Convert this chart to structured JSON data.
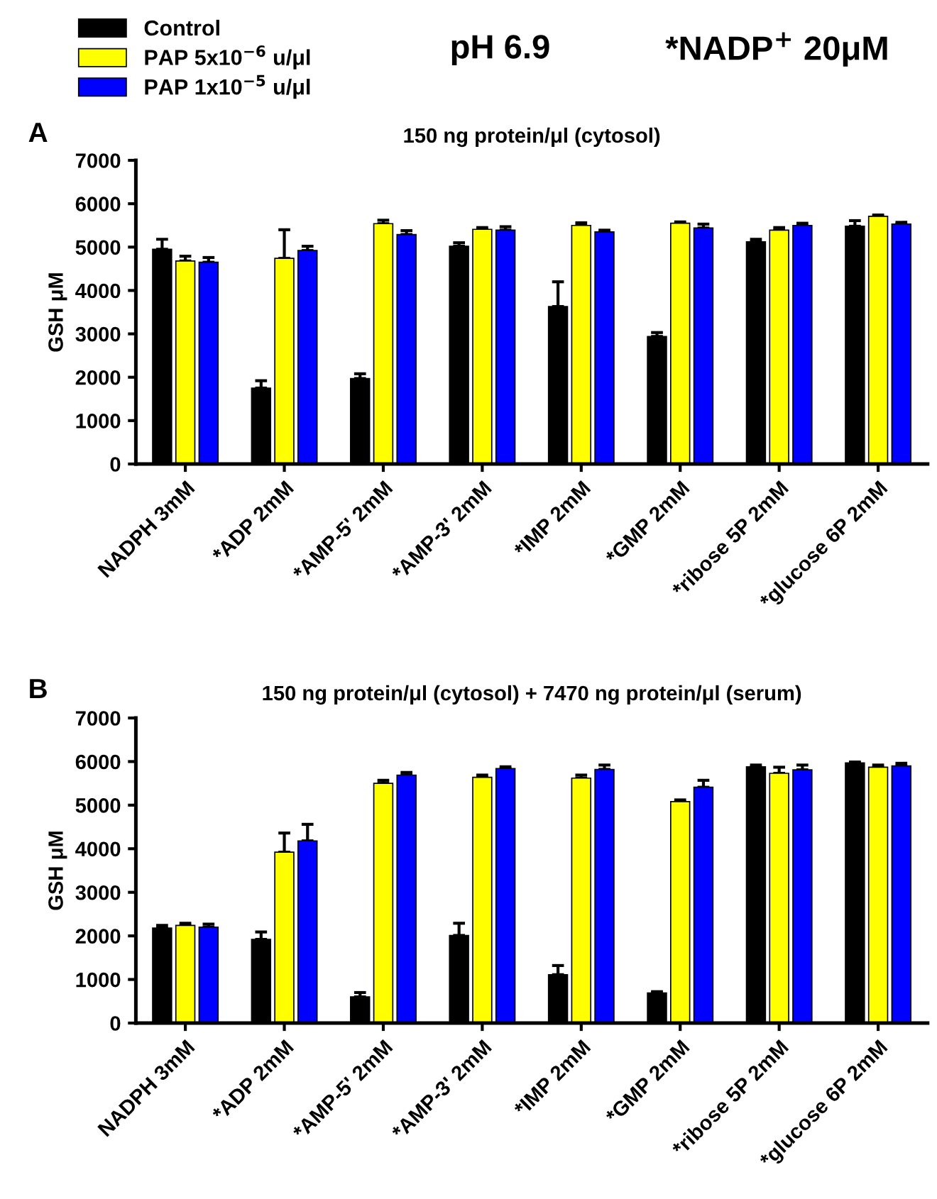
{
  "chart_data": [
    {
      "type": "bar",
      "title": "150 ng protein/μl (cytosol)",
      "ylabel": "GSH μM",
      "annotations": [
        "A",
        "pH 6.9",
        "*NADP$^{+}$ 20μM"
      ],
      "categories": [
        "NADPH 3mM",
        "*ADP 2mM",
        "*AMP-5' 2mM",
        "*AMP-3' 2mM",
        "*IMP 2mM",
        "*GMP 2mM",
        "*ribose 5P 2mM",
        "*glucose 6P 2mM"
      ],
      "ylim": [
        0,
        7000
      ],
      "yticks": [
        0,
        1000,
        2000,
        3000,
        4000,
        5000,
        6000,
        7000
      ],
      "grid": false,
      "legend": "top left",
      "series": [
        {
          "name": "Control",
          "color": "#000000",
          "values": [
            4950,
            1750,
            1970,
            5020,
            3630,
            2940,
            5120,
            5480
          ],
          "errors": [
            [
              4950,
              5180
            ],
            [
              1750,
              1920
            ],
            [
              1970,
              2080
            ],
            [
              5020,
              5100
            ],
            [
              3630,
              4200
            ],
            [
              2940,
              3030
            ],
            [
              5120,
              5180
            ],
            [
              5480,
              5610
            ]
          ]
        },
        {
          "name": "PAP 5x10$^{−6}$ u/μl",
          "color": "#ffff00",
          "values": [
            4680,
            4740,
            5540,
            5410,
            5500,
            5550,
            5390,
            5710
          ],
          "errors": [
            [
              4680,
              4790
            ],
            [
              4740,
              5400
            ],
            [
              5540,
              5620
            ],
            [
              5410,
              5450
            ],
            [
              5500,
              5560
            ],
            [
              5550,
              5580
            ],
            [
              5390,
              5450
            ],
            [
              5710,
              5740
            ]
          ]
        },
        {
          "name": "PAP 1x10$^{−5}$ u/μl",
          "color": "#0000ff",
          "values": [
            4650,
            4920,
            5290,
            5390,
            5350,
            5440,
            5500,
            5530
          ],
          "errors": [
            [
              4650,
              4760
            ],
            [
              4920,
              5020
            ],
            [
              5290,
              5380
            ],
            [
              5390,
              5470
            ],
            [
              5350,
              5390
            ],
            [
              5440,
              5530
            ],
            [
              5500,
              5550
            ],
            [
              5530,
              5570
            ]
          ]
        }
      ]
    },
    {
      "type": "bar",
      "title": "150 ng protein/μl (cytosol) + 7470 ng protein/μl (serum)",
      "ylabel": "GSH μM",
      "annotations": [
        "B"
      ],
      "categories": [
        "NADPH 3mM",
        "*ADP 2mM",
        "*AMP-5' 2mM",
        "*AMP-3' 2mM",
        "*IMP 2mM",
        "*GMP 2mM",
        "*ribose 5P 2mM",
        "*glucose 6P 2mM"
      ],
      "ylim": [
        0,
        7000
      ],
      "yticks": [
        0,
        1000,
        2000,
        3000,
        4000,
        5000,
        6000,
        7000
      ],
      "grid": false,
      "series": [
        {
          "color": "#000000",
          "values": [
            2180,
            1920,
            600,
            2010,
            1110,
            690,
            5880,
            5970
          ],
          "errors": [
            [
              2180,
              2240
            ],
            [
              1920,
              2090
            ],
            [
              600,
              700
            ],
            [
              2010,
              2290
            ],
            [
              1110,
              1320
            ],
            [
              690,
              720
            ],
            [
              5880,
              5920
            ],
            [
              5970,
              5990
            ]
          ]
        },
        {
          "color": "#ffff00",
          "values": [
            2240,
            3920,
            5500,
            5640,
            5620,
            5080,
            5730,
            5870
          ],
          "errors": [
            [
              2240,
              2290
            ],
            [
              3920,
              4360
            ],
            [
              5500,
              5570
            ],
            [
              5640,
              5690
            ],
            [
              5620,
              5690
            ],
            [
              5080,
              5120
            ],
            [
              5730,
              5870
            ],
            [
              5870,
              5920
            ]
          ]
        },
        {
          "color": "#0000ff",
          "values": [
            2200,
            4180,
            5690,
            5840,
            5820,
            5410,
            5810,
            5900
          ],
          "errors": [
            [
              2200,
              2270
            ],
            [
              4180,
              4560
            ],
            [
              5690,
              5750
            ],
            [
              5840,
              5880
            ],
            [
              5820,
              5920
            ],
            [
              5410,
              5570
            ],
            [
              5810,
              5920
            ],
            [
              5900,
              5960
            ]
          ]
        }
      ]
    }
  ]
}
